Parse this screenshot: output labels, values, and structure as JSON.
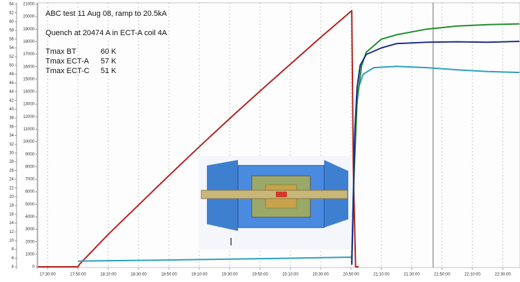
{
  "chart_data": {
    "type": "line",
    "annotations": [
      "ABC test 11 Aug 08, ramp to 20.5kA",
      "Quench at 20474 A in ECT-A coil 4A"
    ],
    "table": [
      [
        "Tmax BT",
        "60 K"
      ],
      [
        "Tmax ECT-A",
        "57 K"
      ],
      [
        "Tmax ECT-C",
        "51 K"
      ]
    ],
    "xlim": [
      "17:23:38",
      "22:41:22"
    ],
    "xticks": [
      "17:30:00",
      "17:50:00",
      "18:10:00",
      "18:30:00",
      "18:50:00",
      "19:10:00",
      "19:30:00",
      "19:50:00",
      "20:10:00",
      "20:30:00",
      "20:50:00",
      "21:10:00",
      "21:30:00",
      "21:50:00",
      "22:10:00",
      "22:30:00"
    ],
    "ylim": [
      4,
      64
    ],
    "yticks": [
      4,
      6,
      8,
      10,
      12,
      14,
      16,
      18,
      20,
      22,
      24,
      26,
      28,
      30,
      32,
      34,
      36,
      38,
      40,
      42,
      44,
      46,
      48,
      50,
      52,
      54,
      56,
      58,
      60,
      62,
      64
    ],
    "y2lim": [
      0,
      21000
    ],
    "y2ticks": [
      0,
      1000,
      2000,
      3000,
      4000,
      5000,
      6000,
      7000,
      8000,
      9000,
      10000,
      11000,
      12000,
      13000,
      14000,
      15000,
      16000,
      17000,
      18000,
      19000,
      20000,
      21000
    ],
    "grid": true,
    "series": [
      {
        "color": "#b3201d",
        "axis": "y2",
        "x": [
          "17:23:38",
          "17:50:00",
          "17:51:00",
          "18:10:00",
          "18:30:00",
          "18:50:00",
          "19:10:00",
          "19:30:00",
          "19:50:00",
          "20:10:00",
          "20:30:00",
          "20:50:30",
          "20:51:30",
          "20:53:00",
          "20:55:00"
        ],
        "values": [
          0,
          0,
          200,
          2600,
          4950,
          7300,
          9600,
          11850,
          14050,
          16200,
          18350,
          20474,
          8000,
          0,
          0
        ]
      },
      {
        "color": "#2a9ec0",
        "x": [
          "17:50:00",
          "19:00:00",
          "20:00:00",
          "20:50:30",
          "20:51:30",
          "20:53:00",
          "20:55:00",
          "20:58:00",
          "21:05:00",
          "21:20:00",
          "21:40:00",
          "22:00:00",
          "22:20:00",
          "22:41:00"
        ],
        "values": [
          5.3,
          5.6,
          5.9,
          6.2,
          20,
          38,
          45,
          48,
          49.5,
          49.8,
          49.5,
          49,
          48.6,
          48.4
        ]
      },
      {
        "color": "#1e8c2a",
        "x": [
          "20:50:30",
          "20:52:00",
          "20:54:00",
          "20:57:00",
          "21:00:00",
          "21:10:00",
          "21:20:00",
          "21:40:00",
          "22:00:00",
          "22:20:00",
          "22:41:00"
        ],
        "values": [
          4.5,
          25,
          42,
          50,
          53,
          56,
          57,
          58.3,
          59,
          59.3,
          59.5
        ]
      },
      {
        "color": "#1a2a8c",
        "x": [
          "20:50:30",
          "20:51:30",
          "20:52:30",
          "20:54:00",
          "20:56:00",
          "21:00:00",
          "21:10:00",
          "21:20:00",
          "21:40:00",
          "22:00:00",
          "22:20:00",
          "22:41:00"
        ],
        "values": [
          4.5,
          20,
          35,
          45,
          50,
          52.5,
          54,
          55,
          55.3,
          55.4,
          55.3,
          55.5
        ]
      }
    ]
  }
}
